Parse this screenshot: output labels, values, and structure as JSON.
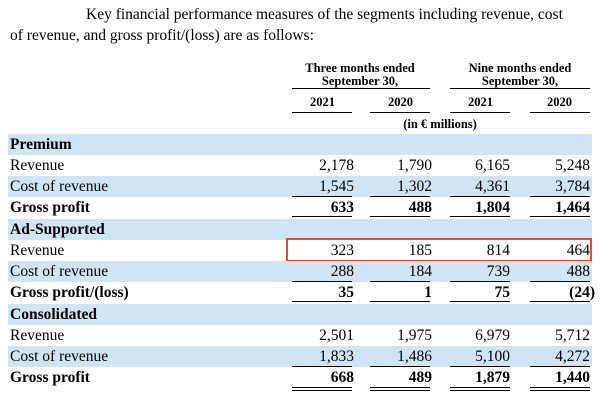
{
  "intro": {
    "line1": "Key financial performance measures of the segments including revenue, cost",
    "line2": "of revenue, and gross profit/(loss) are as follows:"
  },
  "header": {
    "three_months_line1": "Three months ended",
    "three_months_line2": "September 30,",
    "nine_months_line1": "Nine months ended",
    "nine_months_line2": "September 30,",
    "years": [
      "2021",
      "2020",
      "2021",
      "2020"
    ],
    "units": "(in € millions)"
  },
  "sections": [
    {
      "title": "Premium",
      "rows": [
        {
          "label": "Revenue",
          "values": [
            "2,178",
            "1,790",
            "6,165",
            "5,248"
          ]
        },
        {
          "label": "Cost of revenue",
          "values": [
            "1,545",
            "1,302",
            "4,361",
            "3,784"
          ]
        },
        {
          "label": "Gross profit",
          "values": [
            "633",
            "488",
            "1,804",
            "1,464"
          ]
        }
      ]
    },
    {
      "title": "Ad-Supported",
      "rows": [
        {
          "label": "Revenue",
          "values": [
            "323",
            "185",
            "814",
            "464"
          ]
        },
        {
          "label": "Cost of revenue",
          "values": [
            "288",
            "184",
            "739",
            "488"
          ]
        },
        {
          "label": "Gross profit/(loss)",
          "values": [
            "35",
            "1",
            "75",
            "(24)"
          ]
        }
      ]
    },
    {
      "title": "Consolidated",
      "rows": [
        {
          "label": "Revenue",
          "values": [
            "2,501",
            "1,975",
            "6,979",
            "5,712"
          ]
        },
        {
          "label": "Cost of revenue",
          "values": [
            "1,833",
            "1,486",
            "5,100",
            "4,272"
          ]
        },
        {
          "label": "Gross profit",
          "values": [
            "668",
            "489",
            "1,879",
            "1,440"
          ]
        }
      ]
    }
  ],
  "highlight_color": "#e8492f",
  "band_color": "#cfe4f5"
}
